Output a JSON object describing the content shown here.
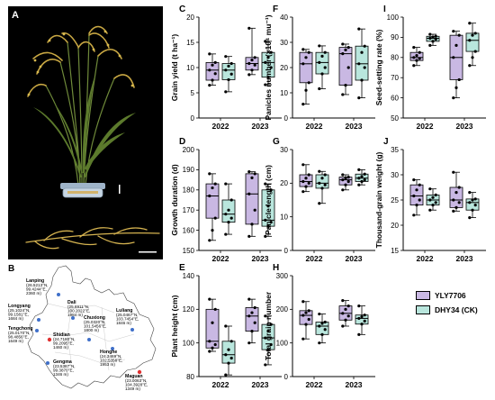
{
  "figure_letters": {
    "a": "A",
    "b": "B"
  },
  "legend": [
    {
      "label": "YLY7706",
      "color": "#c9b8e3"
    },
    {
      "label": "DHY34 (CK)",
      "color": "#b9e6dd"
    }
  ],
  "map_sites": [
    {
      "name": "Lanping",
      "lines": [
        "(26.5213°N,",
        "99.4244°E,",
        "2360 m)"
      ],
      "color": "#3f6fc9"
    },
    {
      "name": "Longyang",
      "lines": [
        "(25.1024°N,",
        "99.1581°E,",
        "1684 m)"
      ],
      "color": "#3f6fc9"
    },
    {
      "name": "Tengchong",
      "lines": [
        "(25.0170°N,",
        "98.4856°E,",
        "1649 m)"
      ],
      "color": "#3f6fc9"
    },
    {
      "name": "Dali",
      "lines": [
        "(25.6911°N,",
        "100.2022°E,",
        "1984 m)"
      ],
      "color": "#3f6fc9"
    },
    {
      "name": "Shidian",
      "lines": [
        "(24.7180°N,",
        "99.2095°E,",
        "1460 m)"
      ],
      "color": "#e03030"
    },
    {
      "name": "Gengma",
      "lines": [
        "(23.5387°N,",
        "99.3870°E,",
        "1346 m)"
      ],
      "color": "#3f6fc9"
    },
    {
      "name": "Chuxiong",
      "lines": [
        "(25.0320°N,",
        "101.5456°E,",
        "1800 m)"
      ],
      "color": "#3f6fc9"
    },
    {
      "name": "Luliang",
      "lines": [
        "(25.0467°N,",
        "103.7454°E,",
        "1846 m)"
      ],
      "color": "#3f6fc9"
    },
    {
      "name": "Honghe",
      "lines": [
        "(24.3469°N,",
        "102.5358°E,",
        "1953 m)"
      ],
      "color": "#3f6fc9"
    },
    {
      "name": "Maguan",
      "lines": [
        "(23.0063°N,",
        "104.3928°E,",
        "1349 m)"
      ],
      "color": "#e03030"
    }
  ],
  "chart_data": [
    {
      "id": "C",
      "letter": "C",
      "type": "box",
      "ylabel": "Grain yield (t ha⁻¹)",
      "ylim": [
        0,
        20
      ],
      "yticks": [
        0,
        5,
        10,
        15,
        20
      ],
      "categories": [
        "2022",
        "2023"
      ],
      "series": [
        {
          "name": "YLY7706",
          "color": "#c9b8e3",
          "boxes": [
            {
              "min": 6.5,
              "q1": 7.5,
              "median": 9.5,
              "q3": 11.0,
              "max": 12.7,
              "points": [
                6.5,
                7.5,
                8.8,
                9.5,
                10.5,
                11.0,
                12.7
              ]
            },
            {
              "min": 8.6,
              "q1": 9.5,
              "median": 10.8,
              "q3": 12.0,
              "max": 17.8,
              "points": [
                8.6,
                9.5,
                10.5,
                10.8,
                11.5,
                12.0,
                17.8
              ]
            }
          ]
        },
        {
          "name": "DHY34 (CK)",
          "color": "#b9e6dd",
          "boxes": [
            {
              "min": 5.2,
              "q1": 7.6,
              "median": 9.5,
              "q3": 10.8,
              "max": 12.2,
              "points": [
                5.2,
                7.6,
                8.7,
                9.5,
                10.3,
                10.8,
                12.2
              ]
            },
            {
              "min": 6.6,
              "q1": 8.1,
              "median": 11.0,
              "q3": 13.0,
              "max": 15.2,
              "points": [
                6.6,
                8.1,
                10.0,
                11.0,
                12.0,
                13.0,
                15.2
              ]
            }
          ]
        }
      ]
    },
    {
      "id": "F",
      "letter": "F",
      "type": "box",
      "ylabel": "Panicles number (×10⁴ mu⁻¹)",
      "ylim": [
        0,
        40
      ],
      "yticks": [
        0,
        10,
        20,
        30,
        40
      ],
      "categories": [
        "2022",
        "2023"
      ],
      "series": [
        {
          "name": "YLY7706",
          "color": "#c9b8e3",
          "boxes": [
            {
              "min": 5.5,
              "q1": 14.0,
              "median": 21.5,
              "q3": 26.0,
              "max": 27.2,
              "points": [
                5.5,
                11.0,
                14.0,
                21.5,
                24.0,
                26.0,
                27.2
              ]
            },
            {
              "min": 9.3,
              "q1": 13.0,
              "median": 25.5,
              "q3": 28.0,
              "max": 29.3,
              "points": [
                9.3,
                13.0,
                20.0,
                25.5,
                27.0,
                28.0,
                29.3
              ]
            }
          ]
        },
        {
          "name": "DHY34 (CK)",
          "color": "#b9e6dd",
          "boxes": [
            {
              "min": 11.6,
              "q1": 17.5,
              "median": 22.0,
              "q3": 26.0,
              "max": 28.6,
              "points": [
                11.6,
                17.5,
                20.0,
                22.0,
                24.5,
                26.0,
                28.6
              ]
            },
            {
              "min": 8.0,
              "q1": 15.0,
              "median": 21.5,
              "q3": 28.5,
              "max": 35.3,
              "points": [
                8.0,
                15.0,
                20.0,
                21.5,
                26.0,
                28.5,
                35.3
              ]
            }
          ]
        }
      ]
    },
    {
      "id": "I",
      "letter": "I",
      "type": "box",
      "ylabel": "Seed-setting rate (%)",
      "ylim": [
        50,
        100
      ],
      "yticks": [
        50,
        60,
        70,
        80,
        90,
        100
      ],
      "categories": [
        "2022",
        "2023"
      ],
      "series": [
        {
          "name": "YLY7706",
          "color": "#c9b8e3",
          "boxes": [
            {
              "min": 76.0,
              "q1": 78.5,
              "median": 80.0,
              "q3": 82.5,
              "max": 85.0,
              "points": [
                76.0,
                78.5,
                79.5,
                80.0,
                81.0,
                82.5,
                85.0
              ]
            },
            {
              "min": 60.0,
              "q1": 69.0,
              "median": 80.0,
              "q3": 91.0,
              "max": 93.0,
              "points": [
                60.0,
                65.0,
                69.0,
                80.0,
                86.0,
                91.0,
                93.0
              ]
            }
          ]
        },
        {
          "name": "DHY34 (CK)",
          "color": "#b9e6dd",
          "boxes": [
            {
              "min": 86.0,
              "q1": 88.0,
              "median": 89.5,
              "q3": 90.5,
              "max": 91.5,
              "points": [
                86.0,
                88.0,
                89.0,
                89.5,
                90.0,
                90.5,
                91.5
              ]
            },
            {
              "min": 76.0,
              "q1": 83.0,
              "median": 88.5,
              "q3": 92.0,
              "max": 97.0,
              "points": [
                76.0,
                80.0,
                83.0,
                88.5,
                91.0,
                92.0,
                97.0
              ]
            }
          ]
        }
      ]
    },
    {
      "id": "D",
      "letter": "D",
      "type": "box",
      "ylabel": "Growth duration (d)",
      "ylim": [
        150,
        200
      ],
      "yticks": [
        150,
        160,
        170,
        180,
        190,
        200
      ],
      "categories": [
        "2022",
        "2023"
      ],
      "series": [
        {
          "name": "YLY7706",
          "color": "#c9b8e3",
          "boxes": [
            {
              "min": 155.0,
              "q1": 166.0,
              "median": 177.0,
              "q3": 183.0,
              "max": 188.0,
              "points": [
                155.0,
                160.0,
                166.0,
                177.0,
                181.0,
                183.0,
                188.0
              ]
            },
            {
              "min": 157.0,
              "q1": 163.0,
              "median": 178.0,
              "q3": 188.0,
              "max": 189.0,
              "points": [
                157.0,
                163.0,
                170.0,
                178.0,
                186.0,
                188.0,
                189.0
              ]
            }
          ]
        },
        {
          "name": "DHY34 (CK)",
          "color": "#b9e6dd",
          "boxes": [
            {
              "min": 158.0,
              "q1": 164.0,
              "median": 168.0,
              "q3": 175.0,
              "max": 183.0,
              "points": [
                158.0,
                164.0,
                166.0,
                168.0,
                170.0,
                175.0,
                183.0
              ]
            },
            {
              "min": 157.0,
              "q1": 162.0,
              "median": 165.0,
              "q3": 180.0,
              "max": 183.0,
              "points": [
                157.0,
                162.0,
                164.0,
                165.0,
                172.0,
                180.0,
                183.0
              ]
            }
          ]
        }
      ]
    },
    {
      "id": "G",
      "letter": "G",
      "type": "box",
      "ylabel": "Panicle length (cm)",
      "ylim": [
        0,
        30
      ],
      "yticks": [
        0,
        10,
        20,
        30
      ],
      "categories": [
        "2022",
        "2023"
      ],
      "series": [
        {
          "name": "YLY7706",
          "color": "#c9b8e3",
          "boxes": [
            {
              "min": 17.5,
              "q1": 19.0,
              "median": 20.5,
              "q3": 22.5,
              "max": 25.5,
              "points": [
                17.5,
                19.0,
                20.0,
                20.5,
                21.5,
                22.5,
                25.5
              ]
            },
            {
              "min": 18.0,
              "q1": 19.5,
              "median": 21.0,
              "q3": 21.8,
              "max": 22.5,
              "points": [
                18.0,
                19.5,
                20.5,
                21.0,
                21.5,
                21.8,
                22.5
              ]
            }
          ]
        },
        {
          "name": "DHY34 (CK)",
          "color": "#b9e6dd",
          "boxes": [
            {
              "min": 14.0,
              "q1": 18.5,
              "median": 20.0,
              "q3": 22.5,
              "max": 23.5,
              "points": [
                14.0,
                18.5,
                19.5,
                20.0,
                21.5,
                22.5,
                23.5
              ]
            },
            {
              "min": 19.5,
              "q1": 20.5,
              "median": 21.5,
              "q3": 22.7,
              "max": 24.0,
              "points": [
                19.5,
                20.5,
                21.0,
                21.5,
                22.0,
                22.7,
                24.0
              ]
            }
          ]
        }
      ]
    },
    {
      "id": "J",
      "letter": "J",
      "type": "box",
      "ylabel": "Thousand-grain weight (g)",
      "ylim": [
        15,
        35
      ],
      "yticks": [
        15,
        20,
        25,
        30,
        35
      ],
      "categories": [
        "2022",
        "2023"
      ],
      "series": [
        {
          "name": "YLY7706",
          "color": "#c9b8e3",
          "boxes": [
            {
              "min": 22.0,
              "q1": 24.0,
              "median": 25.8,
              "q3": 28.0,
              "max": 29.0,
              "points": [
                22.0,
                24.0,
                25.0,
                25.8,
                27.0,
                28.0,
                29.0
              ]
            },
            {
              "min": 22.8,
              "q1": 23.5,
              "median": 25.0,
              "q3": 27.5,
              "max": 30.5,
              "points": [
                22.8,
                23.5,
                24.5,
                25.0,
                26.5,
                27.5,
                30.5
              ]
            }
          ]
        },
        {
          "name": "DHY34 (CK)",
          "color": "#b9e6dd",
          "boxes": [
            {
              "min": 23.0,
              "q1": 24.0,
              "median": 25.0,
              "q3": 26.0,
              "max": 27.2,
              "points": [
                23.0,
                24.0,
                24.5,
                25.0,
                25.5,
                26.0,
                27.2
              ]
            },
            {
              "min": 21.5,
              "q1": 23.0,
              "median": 24.5,
              "q3": 25.2,
              "max": 26.5,
              "points": [
                21.5,
                23.0,
                24.0,
                24.5,
                25.0,
                25.2,
                26.5
              ]
            }
          ]
        }
      ]
    },
    {
      "id": "E",
      "letter": "E",
      "type": "box",
      "ylabel": "Plant height (cm)",
      "ylim": [
        80,
        140
      ],
      "yticks": [
        80,
        100,
        120,
        140
      ],
      "categories": [
        "2022",
        "2023"
      ],
      "series": [
        {
          "name": "YLY7706",
          "color": "#c9b8e3",
          "boxes": [
            {
              "min": 95.0,
              "q1": 97.0,
              "median": 101.0,
              "q3": 120.0,
              "max": 126.0,
              "points": [
                95.0,
                97.0,
                99.0,
                101.0,
                112.0,
                120.0,
                126.0
              ]
            },
            {
              "min": 100.0,
              "q1": 107.0,
              "median": 116.0,
              "q3": 121.0,
              "max": 126.0,
              "points": [
                100.0,
                107.0,
                112.0,
                116.0,
                118.0,
                121.0,
                126.0
              ]
            }
          ]
        },
        {
          "name": "DHY34 (CK)",
          "color": "#b9e6dd",
          "boxes": [
            {
              "min": 81.0,
              "q1": 88.0,
              "median": 93.0,
              "q3": 101.0,
              "max": 110.0,
              "points": [
                81.0,
                88.0,
                91.0,
                93.0,
                96.0,
                101.0,
                110.0
              ]
            },
            {
              "min": 87.0,
              "q1": 96.0,
              "median": 103.0,
              "q3": 111.0,
              "max": 116.0,
              "points": [
                87.0,
                96.0,
                99.0,
                103.0,
                107.0,
                111.0,
                116.0
              ]
            }
          ]
        }
      ]
    },
    {
      "id": "H",
      "letter": "H",
      "type": "box",
      "ylabel": "Total grain number",
      "ylim": [
        0,
        300
      ],
      "yticks": [
        0,
        100,
        200,
        300
      ],
      "categories": [
        "2022",
        "2023"
      ],
      "series": [
        {
          "name": "YLY7706",
          "color": "#c9b8e3",
          "boxes": [
            {
              "min": 112.0,
              "q1": 155.0,
              "median": 182.0,
              "q3": 196.0,
              "max": 223.0,
              "points": [
                112.0,
                155.0,
                170.0,
                182.0,
                190.0,
                196.0,
                223.0
              ]
            },
            {
              "min": 150.0,
              "q1": 168.0,
              "median": 188.0,
              "q3": 210.0,
              "max": 226.0,
              "points": [
                150.0,
                168.0,
                180.0,
                188.0,
                200.0,
                210.0,
                226.0
              ]
            }
          ]
        },
        {
          "name": "DHY34 (CK)",
          "color": "#b9e6dd",
          "boxes": [
            {
              "min": 100.0,
              "q1": 125.0,
              "median": 150.0,
              "q3": 162.0,
              "max": 186.0,
              "points": [
                100.0,
                125.0,
                140.0,
                150.0,
                158.0,
                162.0,
                186.0
              ]
            },
            {
              "min": 125.0,
              "q1": 156.0,
              "median": 173.0,
              "q3": 183.0,
              "max": 210.0,
              "points": [
                125.0,
                156.0,
                165.0,
                173.0,
                178.0,
                183.0,
                210.0
              ]
            }
          ]
        }
      ]
    }
  ]
}
